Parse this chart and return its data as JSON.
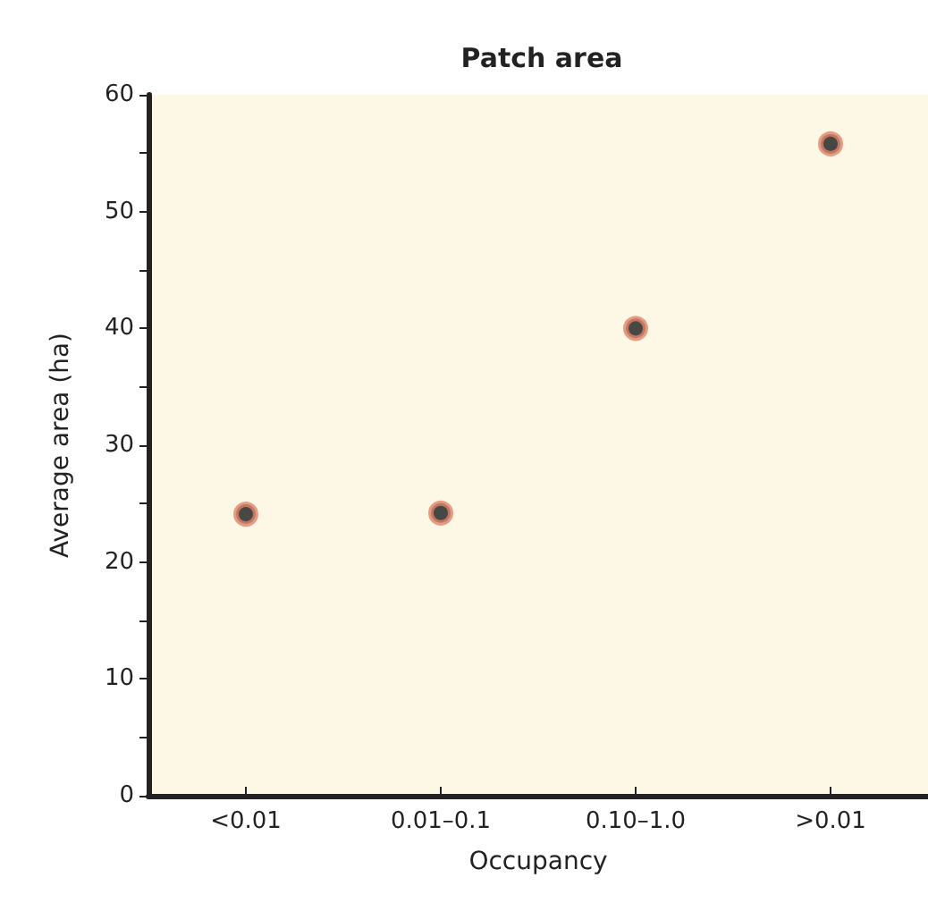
{
  "chart_data": {
    "type": "scatter",
    "title": "Patch area",
    "xlabel": "Occupancy",
    "ylabel": "Average area (ha)",
    "categories": [
      "<0.01",
      "0.01–0.1",
      "0.10–1.0",
      ">0.01"
    ],
    "series": [
      {
        "color": "#e0846a",
        "values": [
          24.1,
          24.2,
          40,
          55.8
        ]
      }
    ],
    "ylim": [
      0,
      60
    ],
    "yticks": [
      0,
      {
        "value": 5,
        "label": null
      },
      10,
      {
        "value": 15,
        "label": null
      },
      20,
      {
        "value": 25,
        "label": null
      },
      30,
      {
        "value": 35,
        "label": null
      },
      40,
      {
        "value": 45,
        "label": null
      },
      50,
      {
        "value": 55,
        "label": null
      },
      60
    ],
    "marker": "circle",
    "grid": false
  }
}
